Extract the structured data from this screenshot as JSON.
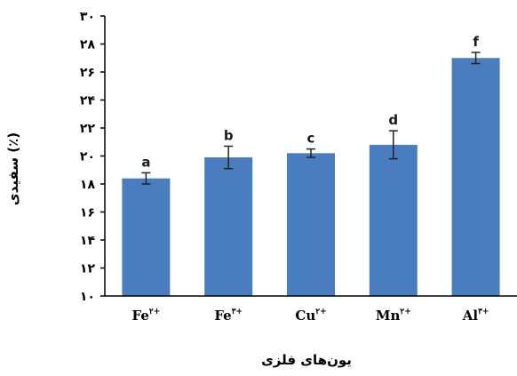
{
  "chart_data": {
    "type": "bar",
    "categories": [
      {
        "base": "Fe",
        "sup": "۲+"
      },
      {
        "base": "Fe",
        "sup": "۳+"
      },
      {
        "base": "Cu",
        "sup": "۲+"
      },
      {
        "base": "Mn",
        "sup": "۲+"
      },
      {
        "base": "Al",
        "sup": "۳+"
      }
    ],
    "values": [
      18.4,
      19.9,
      20.2,
      20.8,
      27.0
    ],
    "errors": [
      0.4,
      0.8,
      0.3,
      1.0,
      0.4
    ],
    "significance_letters": [
      "a",
      "b",
      "c",
      "d",
      "f"
    ],
    "xlabel": "یون‌های فلزی",
    "ylabel": "سفیدی (٪)",
    "ylim": [
      10,
      30
    ],
    "yticks": [
      10,
      12,
      14,
      16,
      18,
      20,
      22,
      24,
      26,
      28,
      30
    ],
    "ytick_labels": [
      "۱۰",
      "۱۲",
      "۱۴",
      "۱۶",
      "۱۸",
      "۲۰",
      "۲۲",
      "۲۴",
      "۲۶",
      "۲۸",
      "۳۰"
    ],
    "grid": false,
    "legend": "none",
    "bar_color": "#4a7dc0",
    "error_bar_color": "#222222",
    "axis_color": "#000000"
  }
}
